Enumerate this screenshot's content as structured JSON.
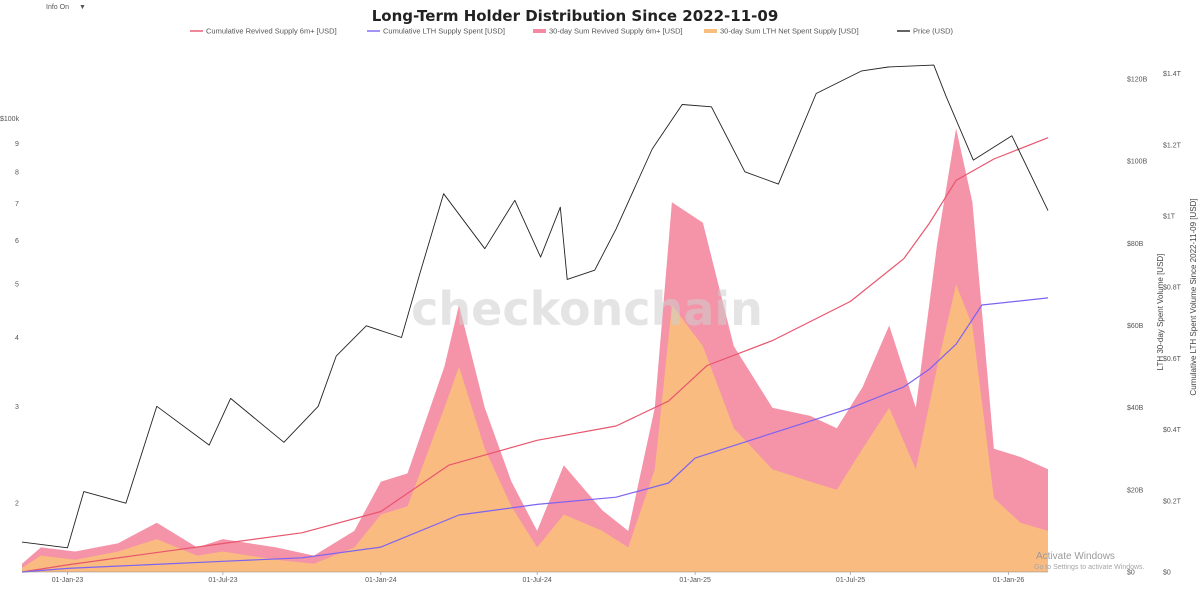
{
  "topbar": {
    "info_label": "Info On",
    "caret": "▼"
  },
  "watermark": "checkonchain",
  "os_notice": {
    "title": "Activate Windows",
    "subtitle": "Go to Settings to activate Windows."
  },
  "chart_data": {
    "type": "area",
    "title": "Long-Term Holder Distribution Since 2022-11-09",
    "legend_position": "top",
    "grid": false,
    "x_ticks": [
      "01-Jan-23",
      "01-Jul-23",
      "01-Jan-24",
      "01-Jul-24",
      "01-Jan-25",
      "01-Jul-25",
      "01-Jan-26"
    ],
    "x_range": [
      "2022-11-09",
      "2026-02-16"
    ],
    "axes": {
      "price_left": {
        "scale": "log",
        "title": "",
        "ticks": [
          "2",
          "3",
          "4",
          "5",
          "6",
          "7",
          "8",
          "9",
          "$100k"
        ],
        "tick_values": [
          20000,
          30000,
          40000,
          50000,
          60000,
          70000,
          80000,
          90000,
          100000
        ]
      },
      "spent_30d_right": {
        "title": "LTH 30-day Spent Volume [USD]",
        "range": [
          0,
          130
        ],
        "unit": "B USD",
        "ticks": [
          "$0",
          "$20B",
          "$40B",
          "$60B",
          "$80B",
          "$100B",
          "$120B"
        ],
        "tick_values": [
          0,
          20,
          40,
          60,
          80,
          100,
          120
        ]
      },
      "cumulative_right": {
        "title": "Cumulative LTH Spent Volume Since 2022-11-09 [USD]",
        "range": [
          0,
          1.5
        ],
        "unit": "T USD",
        "ticks": [
          "$0",
          "$0.2T",
          "$0.4T",
          "$0.6T",
          "$0.8T",
          "$1T",
          "$1.2T",
          "$1.4T"
        ],
        "tick_values": [
          0,
          0.2,
          0.4,
          0.6,
          0.8,
          1.0,
          1.2,
          1.4
        ]
      }
    },
    "series": [
      {
        "name": "Cumulative Revived Supply 6m+ [USD]",
        "kind": "line",
        "axis": "cumulative_right",
        "color": "#e8566d",
        "points": [
          [
            "2022-11-09",
            0
          ],
          [
            "2023-01-01",
            0.02
          ],
          [
            "2023-04-01",
            0.05
          ],
          [
            "2023-07-01",
            0.08
          ],
          [
            "2023-10-01",
            0.11
          ],
          [
            "2024-01-01",
            0.17
          ],
          [
            "2024-03-20",
            0.3
          ],
          [
            "2024-07-01",
            0.37
          ],
          [
            "2024-10-01",
            0.41
          ],
          [
            "2024-12-01",
            0.48
          ],
          [
            "2025-01-15",
            0.58
          ],
          [
            "2025-04-01",
            0.65
          ],
          [
            "2025-07-01",
            0.76
          ],
          [
            "2025-09-01",
            0.88
          ],
          [
            "2025-10-01",
            0.98
          ],
          [
            "2025-11-01",
            1.1
          ],
          [
            "2025-12-15",
            1.16
          ],
          [
            "2026-02-16",
            1.22
          ]
        ]
      },
      {
        "name": "Cumulative LTH Supply Spent [USD]",
        "kind": "line",
        "axis": "cumulative_right",
        "color": "#7d63f0",
        "points": [
          [
            "2022-11-09",
            0
          ],
          [
            "2023-01-01",
            0.01
          ],
          [
            "2023-04-01",
            0.02
          ],
          [
            "2023-07-01",
            0.03
          ],
          [
            "2023-10-01",
            0.04
          ],
          [
            "2024-01-01",
            0.07
          ],
          [
            "2024-04-01",
            0.16
          ],
          [
            "2024-07-01",
            0.19
          ],
          [
            "2024-10-01",
            0.21
          ],
          [
            "2024-12-01",
            0.25
          ],
          [
            "2025-01-01",
            0.32
          ],
          [
            "2025-04-01",
            0.39
          ],
          [
            "2025-07-01",
            0.46
          ],
          [
            "2025-09-01",
            0.52
          ],
          [
            "2025-10-01",
            0.57
          ],
          [
            "2025-11-01",
            0.64
          ],
          [
            "2025-12-01",
            0.75
          ],
          [
            "2026-02-16",
            0.77
          ]
        ]
      },
      {
        "name": "30-day Sum Revived Supply 6m+ [USD]",
        "kind": "area",
        "axis": "spent_30d_right",
        "color": "#f48aa2",
        "points": [
          [
            "2022-11-09",
            2
          ],
          [
            "2022-12-01",
            6
          ],
          [
            "2023-01-10",
            5
          ],
          [
            "2023-03-01",
            7
          ],
          [
            "2023-04-15",
            12
          ],
          [
            "2023-06-01",
            6
          ],
          [
            "2023-07-01",
            8
          ],
          [
            "2023-09-01",
            6
          ],
          [
            "2023-10-15",
            4
          ],
          [
            "2023-12-01",
            10
          ],
          [
            "2024-01-01",
            22
          ],
          [
            "2024-02-01",
            24
          ],
          [
            "2024-03-15",
            50
          ],
          [
            "2024-04-01",
            65
          ],
          [
            "2024-05-01",
            40
          ],
          [
            "2024-06-01",
            22
          ],
          [
            "2024-07-01",
            10
          ],
          [
            "2024-08-01",
            26
          ],
          [
            "2024-09-15",
            15
          ],
          [
            "2024-10-15",
            10
          ],
          [
            "2024-11-15",
            40
          ],
          [
            "2024-12-05",
            90
          ],
          [
            "2025-01-10",
            85
          ],
          [
            "2025-02-15",
            55
          ],
          [
            "2025-04-01",
            40
          ],
          [
            "2025-05-15",
            38
          ],
          [
            "2025-06-15",
            35
          ],
          [
            "2025-07-15",
            45
          ],
          [
            "2025-08-15",
            60
          ],
          [
            "2025-09-15",
            40
          ],
          [
            "2025-10-10",
            80
          ],
          [
            "2025-11-01",
            108
          ],
          [
            "2025-11-20",
            90
          ],
          [
            "2025-12-15",
            30
          ],
          [
            "2026-01-15",
            28
          ],
          [
            "2026-02-16",
            25
          ]
        ]
      },
      {
        "name": "30-day Sum LTH Net Spent Supply [USD]",
        "kind": "area",
        "axis": "spent_30d_right",
        "color": "#f9be7d",
        "points": [
          [
            "2022-11-09",
            1
          ],
          [
            "2022-12-01",
            4
          ],
          [
            "2023-01-10",
            3
          ],
          [
            "2023-03-01",
            5
          ],
          [
            "2023-04-15",
            8
          ],
          [
            "2023-06-01",
            4
          ],
          [
            "2023-07-01",
            5
          ],
          [
            "2023-09-01",
            3
          ],
          [
            "2023-10-15",
            2
          ],
          [
            "2023-12-01",
            6
          ],
          [
            "2024-01-01",
            14
          ],
          [
            "2024-02-01",
            16
          ],
          [
            "2024-03-15",
            40
          ],
          [
            "2024-04-01",
            50
          ],
          [
            "2024-05-01",
            30
          ],
          [
            "2024-06-01",
            16
          ],
          [
            "2024-07-01",
            6
          ],
          [
            "2024-08-01",
            14
          ],
          [
            "2024-09-15",
            10
          ],
          [
            "2024-10-15",
            6
          ],
          [
            "2024-11-15",
            25
          ],
          [
            "2024-12-05",
            65
          ],
          [
            "2025-01-10",
            55
          ],
          [
            "2025-02-15",
            35
          ],
          [
            "2025-04-01",
            25
          ],
          [
            "2025-05-15",
            22
          ],
          [
            "2025-06-15",
            20
          ],
          [
            "2025-07-15",
            30
          ],
          [
            "2025-08-15",
            40
          ],
          [
            "2025-09-15",
            25
          ],
          [
            "2025-10-10",
            50
          ],
          [
            "2025-11-01",
            70
          ],
          [
            "2025-11-20",
            60
          ],
          [
            "2025-12-15",
            18
          ],
          [
            "2026-01-15",
            12
          ],
          [
            "2026-02-16",
            10
          ]
        ]
      },
      {
        "name": "Price (USD)",
        "kind": "line",
        "axis": "price_left",
        "color": "#222222",
        "points": [
          [
            "2022-11-09",
            17000
          ],
          [
            "2023-01-01",
            16600
          ],
          [
            "2023-01-20",
            21000
          ],
          [
            "2023-03-10",
            20000
          ],
          [
            "2023-04-15",
            30000
          ],
          [
            "2023-06-15",
            25500
          ],
          [
            "2023-07-10",
            31000
          ],
          [
            "2023-09-10",
            25800
          ],
          [
            "2023-10-20",
            30000
          ],
          [
            "2023-11-10",
            37000
          ],
          [
            "2023-12-15",
            42000
          ],
          [
            "2024-01-25",
            40000
          ],
          [
            "2024-02-15",
            52000
          ],
          [
            "2024-03-14",
            73000
          ],
          [
            "2024-05-01",
            58000
          ],
          [
            "2024-06-05",
            71000
          ],
          [
            "2024-07-05",
            56000
          ],
          [
            "2024-07-28",
            69000
          ],
          [
            "2024-08-05",
            51000
          ],
          [
            "2024-09-06",
            53000
          ],
          [
            "2024-10-01",
            63000
          ],
          [
            "2024-11-12",
            88000
          ],
          [
            "2024-12-17",
            106000
          ],
          [
            "2025-01-20",
            105000
          ],
          [
            "2025-02-28",
            80000
          ],
          [
            "2025-04-08",
            76000
          ],
          [
            "2025-05-22",
            111000
          ],
          [
            "2025-07-14",
            122000
          ],
          [
            "2025-08-14",
            124000
          ],
          [
            "2025-10-06",
            125000
          ],
          [
            "2025-10-20",
            110000
          ],
          [
            "2025-11-21",
            84000
          ],
          [
            "2026-01-05",
            93000
          ],
          [
            "2026-02-16",
            68000
          ]
        ]
      }
    ]
  }
}
